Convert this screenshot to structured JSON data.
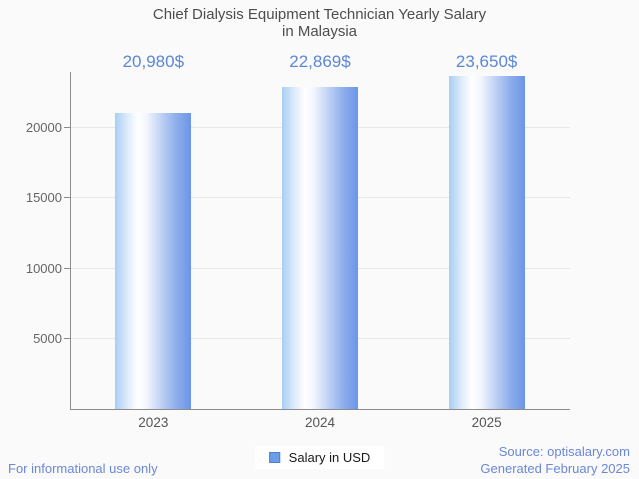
{
  "title": {
    "line1": "Chief Dialysis Equipment Technician Yearly Salary",
    "line2": "in Malaysia"
  },
  "chart_data": {
    "type": "bar",
    "title": "Chief Dialysis Equipment Technician Yearly Salary in Malaysia",
    "categories": [
      "2023",
      "2024",
      "2025"
    ],
    "values": [
      20980,
      22869,
      23650
    ],
    "value_labels": [
      "20,980$",
      "22,869$",
      "23,650$"
    ],
    "series_name": "Salary in USD",
    "xlabel": "",
    "ylabel": "",
    "ylim": [
      0,
      23900
    ],
    "yticks": [
      5000,
      10000,
      15000,
      20000
    ],
    "grid": true,
    "legend_position": "bottom-center"
  },
  "legend": {
    "label": "Salary in USD"
  },
  "footer": {
    "disclaimer": "For informational use only",
    "source": "Source: optisalary.com",
    "generated": "Generated February 2025"
  },
  "colors": {
    "background": "#fafafa",
    "bar_gradient_left": "#a9cdf3",
    "bar_gradient_highlight": "#ffffff",
    "bar_gradient_right": "#6b95e6",
    "value_label_blue": "#5b87d5",
    "legend_marker_fill": "#6d9ce8",
    "legend_marker_border": "#4d80d2",
    "footer_blue": "#6b87d8",
    "axis_gray": "#8c8c8c",
    "grid_gray": "#e7e7e7",
    "title_gray": "#4d4d4d",
    "tick_gray": "#666666"
  }
}
